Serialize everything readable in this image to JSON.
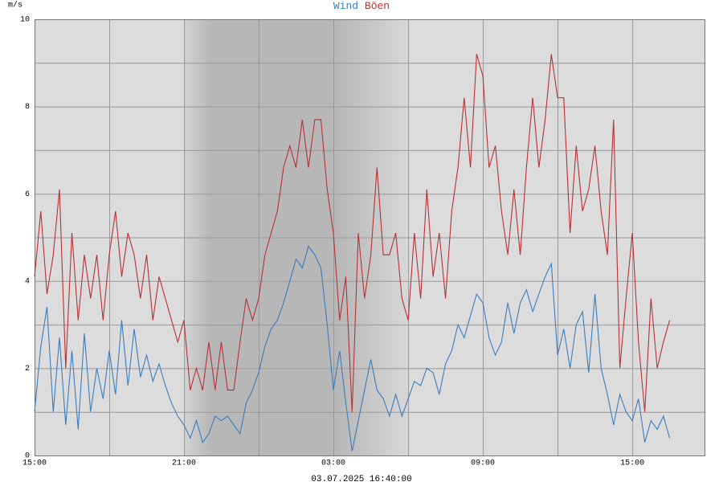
{
  "chart_data": {
    "type": "line",
    "y_label": "m/s",
    "footer": "03.07.2025 16:40:00",
    "x": [
      0,
      0.25,
      0.5,
      0.75,
      1,
      1.25,
      1.5,
      1.75,
      2,
      2.25,
      2.5,
      2.75,
      3,
      3.25,
      3.5,
      3.75,
      4,
      4.25,
      4.5,
      4.75,
      5,
      5.25,
      5.5,
      5.75,
      6,
      6.25,
      6.5,
      6.75,
      7,
      7.25,
      7.5,
      7.75,
      8,
      8.25,
      8.5,
      8.75,
      9,
      9.25,
      9.5,
      9.75,
      10,
      10.25,
      10.5,
      10.75,
      11,
      11.25,
      11.5,
      11.75,
      12,
      12.25,
      12.5,
      12.75,
      13,
      13.25,
      13.5,
      13.75,
      14,
      14.25,
      14.5,
      14.75,
      15,
      15.25,
      15.5,
      15.75,
      16,
      16.25,
      16.5,
      16.75,
      17,
      17.25,
      17.5,
      17.75,
      18,
      18.25,
      18.5,
      18.75,
      19,
      19.25,
      19.5,
      19.75,
      20,
      20.25,
      20.5,
      20.75,
      21,
      21.25,
      21.5,
      21.75,
      22,
      22.25,
      22.5,
      22.75,
      23,
      23.25,
      23.5,
      23.75,
      24,
      24.25,
      24.5,
      24.75,
      25,
      25.25,
      25.5
    ],
    "series": [
      {
        "name": "Wind",
        "color": "#3a7ebf",
        "values": [
          1.0,
          2.5,
          3.4,
          1.0,
          2.7,
          0.7,
          2.4,
          0.6,
          2.8,
          1.0,
          2.0,
          1.3,
          2.4,
          1.4,
          3.1,
          1.6,
          2.9,
          1.8,
          2.3,
          1.7,
          2.1,
          1.6,
          1.2,
          0.9,
          0.7,
          0.4,
          0.8,
          0.3,
          0.5,
          0.9,
          0.8,
          0.9,
          0.7,
          0.5,
          1.2,
          1.5,
          1.9,
          2.5,
          2.9,
          3.1,
          3.5,
          4.0,
          4.5,
          4.3,
          4.8,
          4.6,
          4.3,
          3.0,
          1.5,
          2.4,
          1.2,
          0.1,
          0.8,
          1.5,
          2.2,
          1.5,
          1.3,
          0.9,
          1.4,
          0.9,
          1.3,
          1.7,
          1.6,
          2.0,
          1.9,
          1.4,
          2.1,
          2.4,
          3.0,
          2.7,
          3.2,
          3.7,
          3.5,
          2.7,
          2.3,
          2.6,
          3.5,
          2.8,
          3.5,
          3.8,
          3.3,
          3.7,
          4.1,
          4.4,
          2.3,
          2.9,
          2.0,
          3.0,
          3.3,
          1.9,
          3.7,
          2.0,
          1.4,
          0.7,
          1.4,
          1.0,
          0.8,
          1.3,
          0.3,
          0.8,
          0.6,
          0.9,
          0.4
        ]
      },
      {
        "name": "Böen",
        "color": "#b83232",
        "values": [
          4.1,
          5.6,
          3.7,
          4.6,
          6.1,
          2.0,
          5.1,
          3.1,
          4.6,
          3.6,
          4.6,
          3.1,
          4.6,
          5.6,
          4.1,
          5.1,
          4.6,
          3.6,
          4.6,
          3.1,
          4.1,
          3.6,
          3.1,
          2.6,
          3.1,
          1.5,
          2.0,
          1.5,
          2.6,
          1.5,
          2.6,
          1.5,
          1.5,
          2.6,
          3.6,
          3.1,
          3.6,
          4.6,
          5.1,
          5.6,
          6.6,
          7.1,
          6.6,
          7.7,
          6.6,
          7.7,
          7.7,
          6.1,
          5.1,
          3.1,
          4.1,
          1.0,
          5.1,
          3.6,
          4.6,
          6.6,
          4.6,
          4.6,
          5.1,
          3.6,
          3.1,
          5.1,
          3.6,
          6.1,
          4.1,
          5.1,
          3.6,
          5.6,
          6.6,
          8.2,
          6.6,
          9.2,
          8.7,
          6.6,
          7.1,
          5.6,
          4.6,
          6.1,
          4.6,
          6.6,
          8.2,
          6.6,
          7.7,
          9.2,
          8.2,
          8.2,
          5.1,
          7.1,
          5.6,
          6.1,
          7.1,
          5.6,
          4.6,
          7.7,
          2.0,
          3.6,
          5.1,
          2.6,
          1.0,
          3.6,
          2.0,
          2.6,
          3.1
        ]
      }
    ],
    "xlim": [
      0,
      26.9
    ],
    "xticks": [
      {
        "value": 0,
        "label": "15:00"
      },
      {
        "value": 6,
        "label": "21:00"
      },
      {
        "value": 12,
        "label": "03:00"
      },
      {
        "value": 18,
        "label": "09:00"
      },
      {
        "value": 24,
        "label": "15:00"
      }
    ],
    "x_minor_grid": [
      3,
      9,
      15,
      21
    ],
    "ylim": [
      0,
      10
    ],
    "yticks": [
      0,
      2,
      4,
      6,
      8,
      10
    ],
    "y_minor_grid": [
      1,
      3,
      5,
      7,
      9
    ],
    "night": [
      6,
      15
    ],
    "grid": true
  }
}
